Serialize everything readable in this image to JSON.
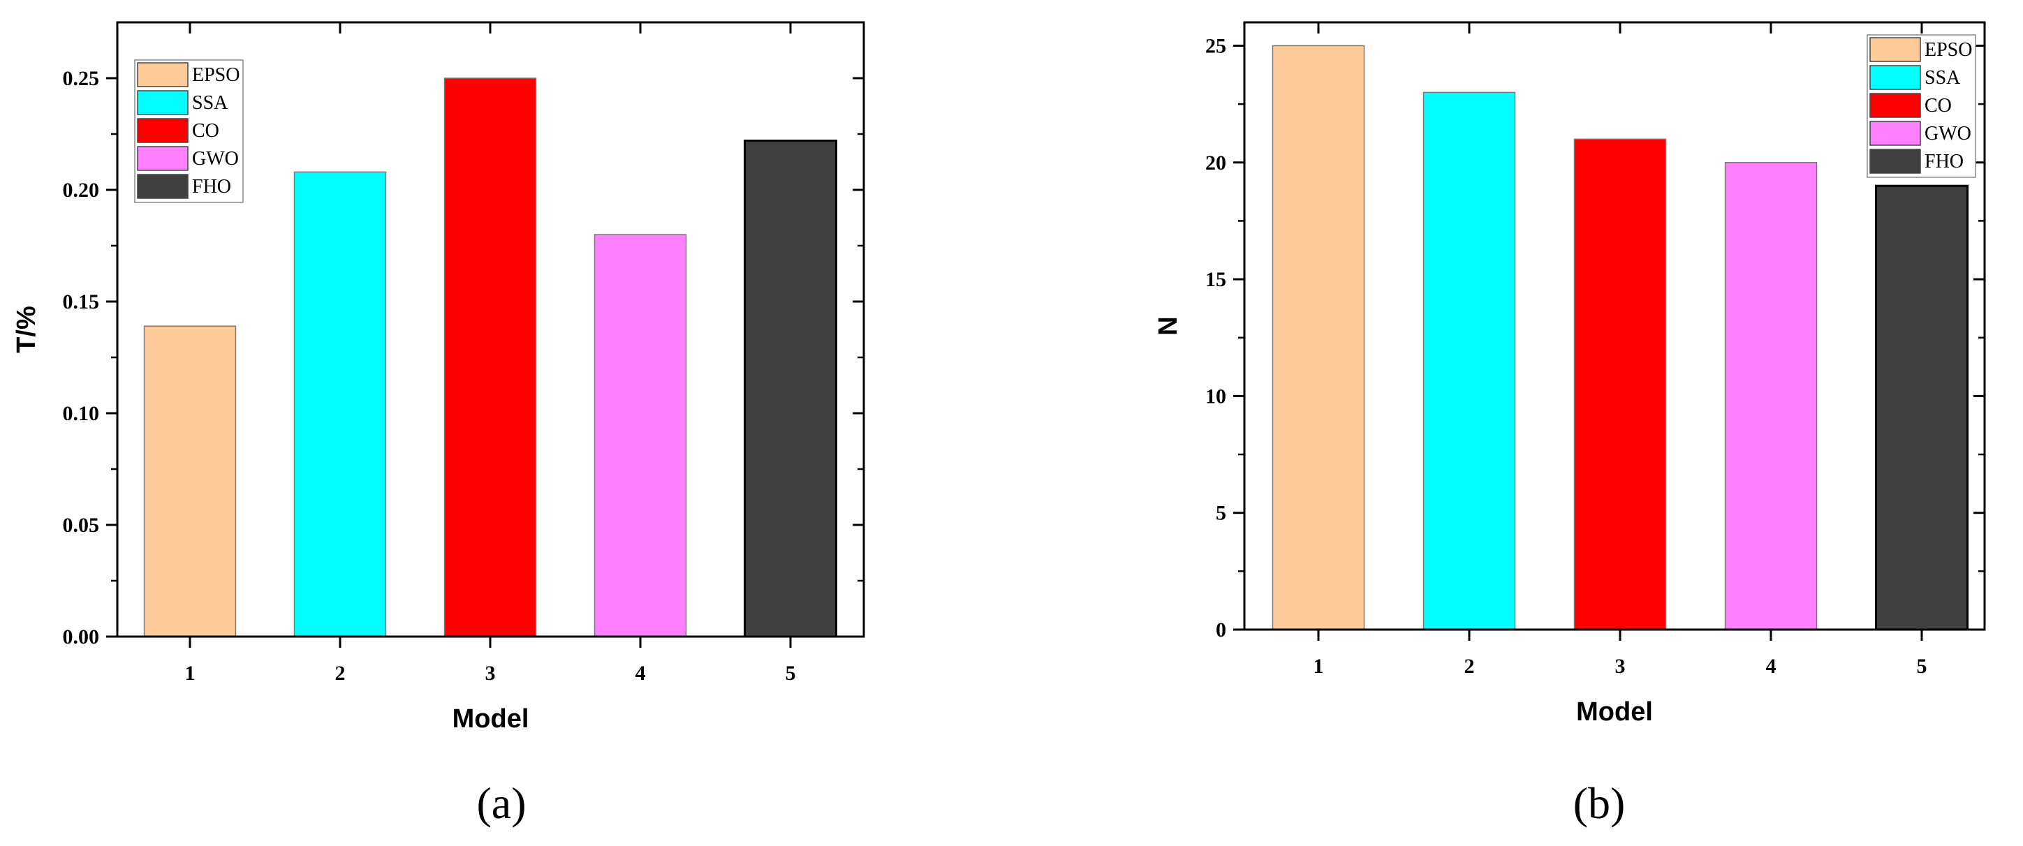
{
  "chart_data": [
    {
      "type": "bar",
      "panel_label": "(a)",
      "categories": [
        "1",
        "2",
        "3",
        "4",
        "5"
      ],
      "values": [
        0.139,
        0.208,
        0.25,
        0.18,
        0.222
      ],
      "series_names": [
        "EPSO",
        "SSA",
        "CO",
        "GWO",
        "FHO"
      ],
      "colors": [
        "#FFCC99",
        "#00FFFF",
        "#FF0000",
        "#FF80FF",
        "#404040"
      ],
      "xlabel": "Model",
      "ylabel": "T/%",
      "ylim": [
        0,
        0.275
      ],
      "yticks": [
        0.0,
        0.05,
        0.1,
        0.15,
        0.2,
        0.25
      ],
      "ytick_labels": [
        "0.00",
        "0.05",
        "0.10",
        "0.15",
        "0.20",
        "0.25"
      ],
      "legend": "top-left",
      "grid": false
    },
    {
      "type": "bar",
      "panel_label": "(b)",
      "categories": [
        "1",
        "2",
        "3",
        "4",
        "5"
      ],
      "values": [
        25,
        23,
        21,
        20,
        19
      ],
      "series_names": [
        "EPSO",
        "SSA",
        "CO",
        "GWO",
        "FHO"
      ],
      "colors": [
        "#FFCC99",
        "#00FFFF",
        "#FF0000",
        "#FF80FF",
        "#404040"
      ],
      "xlabel": "Model",
      "ylabel": "N",
      "ylim": [
        0,
        26
      ],
      "yticks": [
        0,
        5,
        10,
        15,
        20,
        25
      ],
      "ytick_labels": [
        "0",
        "5",
        "10",
        "15",
        "20",
        "25"
      ],
      "legend": "top-right",
      "grid": false
    }
  ]
}
